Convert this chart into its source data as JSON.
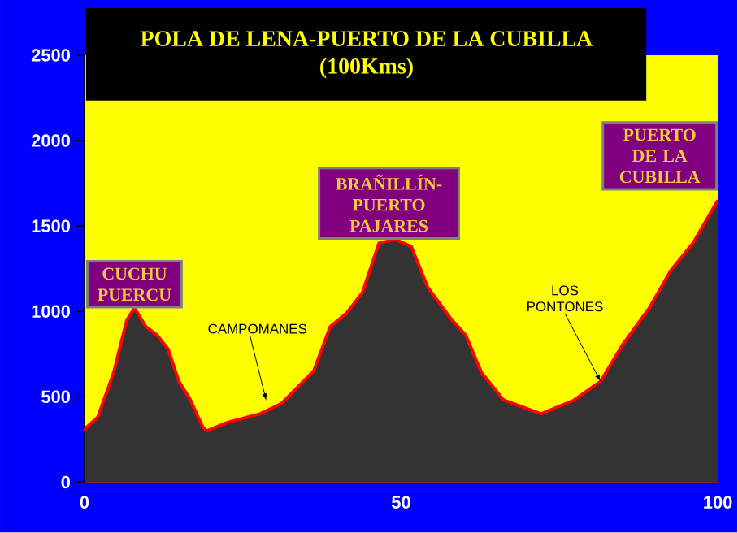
{
  "chart_data": {
    "type": "area",
    "title": "POLA DE LENA-PUERTO DE LA CUBILLA",
    "subtitle": "(100Kms)",
    "xlim": [
      0,
      100
    ],
    "ylim": [
      0,
      2500
    ],
    "xticks": [
      0,
      50,
      100
    ],
    "yticks": [
      0,
      500,
      1000,
      1500,
      2000,
      2500
    ],
    "grid": false,
    "series": [
      {
        "color": "#333333",
        "x": [
          0,
          0.3,
          2.1,
          4.6,
          6.7,
          7.9,
          9.7,
          11.5,
          13.2,
          14.9,
          16.6,
          18.7,
          19.3,
          22.6,
          27.7,
          31.1,
          36.2,
          38.8,
          41.4,
          43.9,
          46.5,
          49.1,
          51.6,
          54.2,
          58.0,
          60.2,
          62.7,
          66.2,
          72.1,
          77.3,
          81.5,
          84.9,
          89.2,
          92.6,
          96.1,
          100
        ],
        "values": [
          300,
          320,
          380,
          640,
          950,
          1020,
          910,
          860,
          780,
          590,
          490,
          320,
          300,
          350,
          400,
          460,
          650,
          910,
          990,
          1110,
          1400,
          1420,
          1380,
          1140,
          950,
          860,
          640,
          480,
          400,
          480,
          590,
          800,
          1020,
          1240,
          1400,
          1650
        ]
      }
    ],
    "annotations": [
      {
        "text": "CUCHU PUERCU",
        "x": 7.9,
        "y": 1017
      },
      {
        "text": "BRAÑILLÍN-PUERTO PAJARES",
        "x": 49.1,
        "y": 1420
      },
      {
        "text": "PUERTO DE LA CUBILLA",
        "x": 100,
        "y": 1650
      },
      {
        "text": "CAMPOMANES",
        "x": 28.7,
        "y": 478
      },
      {
        "text": "LOS PONTONES",
        "x": 81.5,
        "y": 589
      }
    ]
  }
}
